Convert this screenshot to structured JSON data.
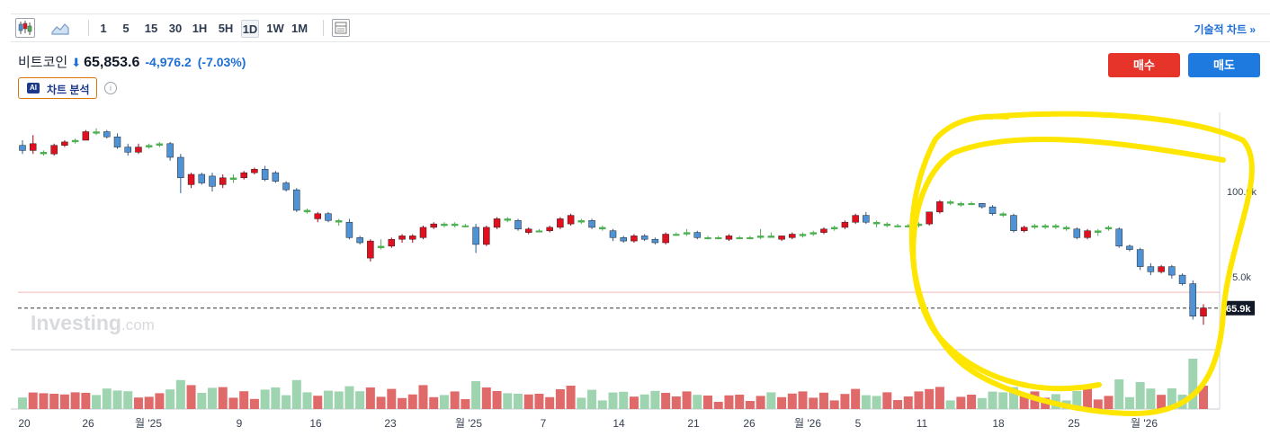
{
  "toolbar": {
    "icons": [
      "candlestick-icon",
      "area-chart-icon",
      "layout-icon"
    ],
    "timeframes": [
      "1",
      "5",
      "15",
      "30",
      "1H",
      "5H",
      "1D",
      "1W",
      "1M"
    ],
    "active_timeframe": "1D",
    "technical_link": "기술적 차트 »"
  },
  "quote": {
    "name": "비트코인",
    "direction_icon": "down-arrow-icon",
    "price": "65,853.6",
    "change": "-4,976.2",
    "change_pct": "(-7.03%)"
  },
  "ai": {
    "badge": "AI",
    "label": "차트 분석"
  },
  "actions": {
    "buy": "매수",
    "sell": "매도"
  },
  "watermark": {
    "brand": "Investing",
    "suffix": ".com"
  },
  "colors": {
    "up": "#e0101e",
    "down": "#4f93d6",
    "vol_up": "#e06a6a",
    "vol_down": "#9fd4b0",
    "highlight": "#ffe600",
    "accent": "#1f6fd6"
  },
  "chart_data": {
    "type": "candlestick",
    "x_tick_labels": [
      "20",
      "26",
      "월 '25",
      "9",
      "16",
      "23",
      "월 '25",
      "7",
      "14",
      "21",
      "26",
      "월 '26",
      "5",
      "11",
      "18",
      "25",
      "월 '26"
    ],
    "y_tick_labels": [
      "100.0k",
      "75.0k"
    ],
    "ylim": [
      58000,
      124000
    ],
    "last_price_label": "65.9k",
    "last_price": 65853.6,
    "reference_line": 70500,
    "annotation": "hand-drawn yellow circle around the recent decline",
    "series": [
      {
        "o": 113.5,
        "h": 115,
        "l": 111,
        "c": 112
      },
      {
        "o": 112,
        "h": 116.5,
        "l": 111,
        "c": 114
      },
      {
        "o": 111,
        "h": 112,
        "l": 110.5,
        "c": 111.5
      },
      {
        "o": 111,
        "h": 114,
        "l": 110.5,
        "c": 113.5
      },
      {
        "o": 113.5,
        "h": 115,
        "l": 113,
        "c": 114.5
      },
      {
        "o": 114.5,
        "h": 115.5,
        "l": 114,
        "c": 115
      },
      {
        "o": 115,
        "h": 118,
        "l": 115,
        "c": 117.5
      },
      {
        "o": 117.5,
        "h": 118.5,
        "l": 116.5,
        "c": 117
      },
      {
        "o": 117.5,
        "h": 118,
        "l": 115.5,
        "c": 116
      },
      {
        "o": 116,
        "h": 117,
        "l": 112.5,
        "c": 113
      },
      {
        "o": 113,
        "h": 114,
        "l": 110.5,
        "c": 111.5
      },
      {
        "o": 111.5,
        "h": 114,
        "l": 111,
        "c": 113
      },
      {
        "o": 113,
        "h": 114,
        "l": 112.5,
        "c": 113.5
      },
      {
        "o": 113.5,
        "h": 114.5,
        "l": 113,
        "c": 114
      },
      {
        "o": 114,
        "h": 114.5,
        "l": 109,
        "c": 110
      },
      {
        "o": 110,
        "h": 111,
        "l": 99.5,
        "c": 104
      },
      {
        "o": 102,
        "h": 105.5,
        "l": 101,
        "c": 105
      },
      {
        "o": 105,
        "h": 105.5,
        "l": 102,
        "c": 102.5
      },
      {
        "o": 104.5,
        "h": 105.5,
        "l": 100,
        "c": 101.5
      },
      {
        "o": 102,
        "h": 105,
        "l": 101,
        "c": 104
      },
      {
        "o": 103.5,
        "h": 105,
        "l": 102.5,
        "c": 104
      },
      {
        "o": 104,
        "h": 106,
        "l": 103.5,
        "c": 105.5
      },
      {
        "o": 105.5,
        "h": 107,
        "l": 105,
        "c": 106.5
      },
      {
        "o": 106.5,
        "h": 107.5,
        "l": 103,
        "c": 103.5
      },
      {
        "o": 105.5,
        "h": 106,
        "l": 102.5,
        "c": 103
      },
      {
        "o": 102.5,
        "h": 103,
        "l": 100,
        "c": 100.5
      },
      {
        "o": 100.5,
        "h": 101,
        "l": 94,
        "c": 94.5
      },
      {
        "o": 94.5,
        "h": 95,
        "l": 93.5,
        "c": 94
      },
      {
        "o": 92,
        "h": 94,
        "l": 91,
        "c": 93.5
      },
      {
        "o": 93.5,
        "h": 94,
        "l": 91,
        "c": 91.5
      },
      {
        "o": 91.5,
        "h": 92,
        "l": 90,
        "c": 91
      },
      {
        "o": 91,
        "h": 92,
        "l": 86,
        "c": 86.5
      },
      {
        "o": 86.5,
        "h": 87,
        "l": 84.5,
        "c": 85
      },
      {
        "o": 80.5,
        "h": 86,
        "l": 79.5,
        "c": 85.5
      },
      {
        "o": 83.5,
        "h": 86,
        "l": 83,
        "c": 84
      },
      {
        "o": 84,
        "h": 86.5,
        "l": 83.5,
        "c": 86
      },
      {
        "o": 86,
        "h": 87.5,
        "l": 85,
        "c": 87
      },
      {
        "o": 86,
        "h": 87.5,
        "l": 85,
        "c": 87
      },
      {
        "o": 86.5,
        "h": 90,
        "l": 86,
        "c": 89.5
      },
      {
        "o": 89.5,
        "h": 91,
        "l": 89,
        "c": 90.5
      },
      {
        "o": 90.5,
        "h": 91,
        "l": 89.5,
        "c": 90
      },
      {
        "o": 90,
        "h": 91,
        "l": 89.5,
        "c": 90.5
      },
      {
        "o": 90,
        "h": 90.5,
        "l": 89.5,
        "c": 90
      },
      {
        "o": 89.5,
        "h": 90.5,
        "l": 82,
        "c": 84.5
      },
      {
        "o": 84.5,
        "h": 90,
        "l": 84,
        "c": 89.5
      },
      {
        "o": 89.5,
        "h": 92.5,
        "l": 89,
        "c": 92
      },
      {
        "o": 92,
        "h": 92.5,
        "l": 91,
        "c": 91.5
      },
      {
        "o": 91.5,
        "h": 92,
        "l": 88.5,
        "c": 89
      },
      {
        "o": 88,
        "h": 89.5,
        "l": 87.5,
        "c": 89
      },
      {
        "o": 88.5,
        "h": 89,
        "l": 88,
        "c": 88.5
      },
      {
        "o": 88.5,
        "h": 90,
        "l": 88,
        "c": 89.5
      },
      {
        "o": 89.5,
        "h": 92.5,
        "l": 89,
        "c": 92
      },
      {
        "o": 90.5,
        "h": 93.5,
        "l": 90,
        "c": 93
      },
      {
        "o": 91.5,
        "h": 92,
        "l": 90.5,
        "c": 91
      },
      {
        "o": 91.5,
        "h": 92,
        "l": 89,
        "c": 89.5
      },
      {
        "o": 89.5,
        "h": 90,
        "l": 88.5,
        "c": 89
      },
      {
        "o": 88.5,
        "h": 89,
        "l": 85.5,
        "c": 86.5
      },
      {
        "o": 86.5,
        "h": 87,
        "l": 85,
        "c": 85.5
      },
      {
        "o": 85.5,
        "h": 87.5,
        "l": 85,
        "c": 87
      },
      {
        "o": 87,
        "h": 87.5,
        "l": 85.5,
        "c": 86
      },
      {
        "o": 86,
        "h": 86.5,
        "l": 84.5,
        "c": 85
      },
      {
        "o": 85,
        "h": 88,
        "l": 84.5,
        "c": 87.5
      },
      {
        "o": 87.5,
        "h": 88,
        "l": 87,
        "c": 87.5
      },
      {
        "o": 87.5,
        "h": 89,
        "l": 87,
        "c": 88
      },
      {
        "o": 88,
        "h": 88.5,
        "l": 86,
        "c": 86.5
      },
      {
        "o": 86.5,
        "h": 87,
        "l": 86,
        "c": 86.5
      },
      {
        "o": 86.5,
        "h": 87,
        "l": 86,
        "c": 86.5
      },
      {
        "o": 86,
        "h": 87.5,
        "l": 85.5,
        "c": 87
      },
      {
        "o": 86.5,
        "h": 87,
        "l": 86,
        "c": 86.5
      },
      {
        "o": 86.5,
        "h": 87,
        "l": 86,
        "c": 86.5
      },
      {
        "o": 86.5,
        "h": 89,
        "l": 86,
        "c": 87
      },
      {
        "o": 87,
        "h": 88,
        "l": 86.5,
        "c": 86.5
      },
      {
        "o": 86,
        "h": 87,
        "l": 85.5,
        "c": 87
      },
      {
        "o": 86.5,
        "h": 88,
        "l": 86,
        "c": 87.5
      },
      {
        "o": 87,
        "h": 88,
        "l": 86.5,
        "c": 87.5
      },
      {
        "o": 87.5,
        "h": 88.5,
        "l": 87,
        "c": 88
      },
      {
        "o": 88,
        "h": 89.5,
        "l": 87.5,
        "c": 89
      },
      {
        "o": 89,
        "h": 90,
        "l": 88.5,
        "c": 89.5
      },
      {
        "o": 89.5,
        "h": 91.5,
        "l": 89,
        "c": 91
      },
      {
        "o": 91,
        "h": 93.5,
        "l": 90.5,
        "c": 93
      },
      {
        "o": 93,
        "h": 94,
        "l": 90.5,
        "c": 91
      },
      {
        "o": 91,
        "h": 91.5,
        "l": 89.5,
        "c": 90.5
      },
      {
        "o": 90,
        "h": 91,
        "l": 89.5,
        "c": 90.5
      },
      {
        "o": 90,
        "h": 90.5,
        "l": 89.5,
        "c": 90
      },
      {
        "o": 90,
        "h": 90.5,
        "l": 89.5,
        "c": 90
      },
      {
        "o": 90,
        "h": 91,
        "l": 89.5,
        "c": 90.5
      },
      {
        "o": 90.5,
        "h": 94,
        "l": 90,
        "c": 94
      },
      {
        "o": 94,
        "h": 97.5,
        "l": 93.5,
        "c": 97
      },
      {
        "o": 97,
        "h": 97.5,
        "l": 96,
        "c": 96.5
      },
      {
        "o": 96,
        "h": 97,
        "l": 95.5,
        "c": 96.5
      },
      {
        "o": 96.5,
        "h": 97,
        "l": 96,
        "c": 96.5
      },
      {
        "o": 96.5,
        "h": 96.5,
        "l": 95,
        "c": 95.5
      },
      {
        "o": 95.5,
        "h": 96,
        "l": 93,
        "c": 93.5
      },
      {
        "o": 93.5,
        "h": 94,
        "l": 92.5,
        "c": 93
      },
      {
        "o": 93,
        "h": 93.5,
        "l": 88,
        "c": 88.5
      },
      {
        "o": 88.5,
        "h": 90,
        "l": 88,
        "c": 89.5
      },
      {
        "o": 89.5,
        "h": 90.5,
        "l": 89,
        "c": 90
      },
      {
        "o": 89.5,
        "h": 90.5,
        "l": 89,
        "c": 90
      },
      {
        "o": 90,
        "h": 90.5,
        "l": 89,
        "c": 89.5
      },
      {
        "o": 89.5,
        "h": 90,
        "l": 88.5,
        "c": 89
      },
      {
        "o": 89,
        "h": 89.5,
        "l": 86,
        "c": 86.5
      },
      {
        "o": 86.5,
        "h": 89,
        "l": 86,
        "c": 88.5
      },
      {
        "o": 88,
        "h": 89,
        "l": 87,
        "c": 88.5
      },
      {
        "o": 89,
        "h": 90,
        "l": 88.5,
        "c": 89.5
      },
      {
        "o": 89,
        "h": 89.5,
        "l": 83.5,
        "c": 84
      },
      {
        "o": 84,
        "h": 84.5,
        "l": 82.5,
        "c": 83
      },
      {
        "o": 83,
        "h": 83.5,
        "l": 77,
        "c": 78
      },
      {
        "o": 78,
        "h": 79,
        "l": 75.5,
        "c": 76.5
      },
      {
        "o": 76.5,
        "h": 78.5,
        "l": 76,
        "c": 78
      },
      {
        "o": 78,
        "h": 78.5,
        "l": 74.5,
        "c": 75.5
      },
      {
        "o": 75.5,
        "h": 76,
        "l": 72.5,
        "c": 73
      },
      {
        "o": 73,
        "h": 74,
        "l": 62.5,
        "c": 63.5
      },
      {
        "o": 63.5,
        "h": 67,
        "l": 61,
        "c": 65.9
      }
    ]
  }
}
